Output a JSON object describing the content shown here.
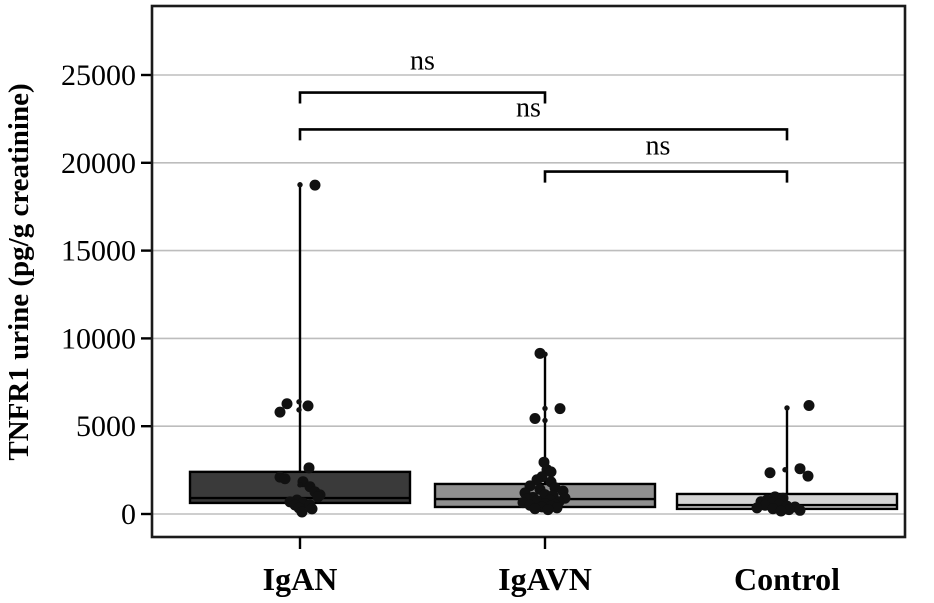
{
  "figure": {
    "background": "#ffffff",
    "border_color": "#1a1a1a",
    "grid_color": "#bdbdbd",
    "point_color": "#111111"
  },
  "chart_data": {
    "type": "box",
    "title": "",
    "xlabel": "",
    "ylabel": "TNFR1 urine (pg/g creatinine)",
    "categories": [
      "IgAN",
      "IgAVN",
      "Control"
    ],
    "x_ticks_shown": [
      "IgAN",
      "IgAVN"
    ],
    "ylim": [
      -1500,
      28500
    ],
    "yticks": [
      0,
      5000,
      10000,
      15000,
      20000,
      25000
    ],
    "grid": "horizontal",
    "legend": "none",
    "points_format": "[value_pg_per_g, x_jitter_px, size(lg|sm)]",
    "groups": [
      {
        "name": "IgAN",
        "fill": "#3a3a3a",
        "q1": 630,
        "median": 910,
        "q3": 2400,
        "whisker_low": 630,
        "whisker_high": 18750,
        "points": [
          [
            18750,
            0,
            "sm"
          ],
          [
            18730,
            15,
            "lg"
          ],
          [
            6390,
            -1,
            "sm"
          ],
          [
            6280,
            -13,
            "lg"
          ],
          [
            6160,
            8,
            "lg"
          ],
          [
            5930,
            -1,
            "sm"
          ],
          [
            5800,
            -20,
            "lg"
          ],
          [
            2630,
            9,
            "lg"
          ],
          [
            2100,
            -20,
            "lg"
          ],
          [
            2010,
            -15,
            "lg"
          ],
          [
            1840,
            3,
            "lg"
          ],
          [
            1660,
            0,
            "sm"
          ],
          [
            1550,
            10,
            "lg"
          ],
          [
            1260,
            15,
            "lg"
          ],
          [
            1090,
            20,
            "lg"
          ],
          [
            975,
            18,
            "lg"
          ],
          [
            800,
            -3,
            "lg"
          ],
          [
            690,
            -10,
            "lg"
          ],
          [
            630,
            3,
            "lg"
          ],
          [
            515,
            -5,
            "lg"
          ],
          [
            510,
            10,
            "lg"
          ],
          [
            340,
            -1,
            "lg"
          ],
          [
            290,
            12,
            "lg"
          ],
          [
            115,
            2,
            "lg"
          ]
        ]
      },
      {
        "name": "IgAVN",
        "fill": "#8f8f8f",
        "q1": 400,
        "median": 850,
        "q3": 1710,
        "whisker_low": 400,
        "whisker_high": 9050,
        "points": [
          [
            9150,
            -5,
            "lg"
          ],
          [
            9100,
            0,
            "sm"
          ],
          [
            6010,
            0,
            "sm"
          ],
          [
            6000,
            15,
            "lg"
          ],
          [
            5440,
            -10,
            "lg"
          ],
          [
            5330,
            0,
            "sm"
          ],
          [
            2950,
            -1,
            "lg"
          ],
          [
            2700,
            0,
            "sm"
          ],
          [
            2520,
            2,
            "lg"
          ],
          [
            2400,
            6,
            "lg"
          ],
          [
            2120,
            -3,
            "lg"
          ],
          [
            1950,
            -8,
            "lg"
          ],
          [
            1830,
            6,
            "lg"
          ],
          [
            1600,
            -15,
            "lg"
          ],
          [
            1500,
            10,
            "lg"
          ],
          [
            1400,
            -5,
            "lg"
          ],
          [
            1300,
            18,
            "lg"
          ],
          [
            1200,
            -20,
            "lg"
          ],
          [
            1100,
            0,
            "lg"
          ],
          [
            1050,
            8,
            "lg"
          ],
          [
            950,
            -12,
            "lg"
          ],
          [
            900,
            20,
            "lg"
          ],
          [
            850,
            -18,
            "lg"
          ],
          [
            800,
            5,
            "lg"
          ],
          [
            750,
            -8,
            "lg"
          ],
          [
            700,
            14,
            "lg"
          ],
          [
            650,
            -22,
            "lg"
          ],
          [
            600,
            0,
            "lg"
          ],
          [
            550,
            10,
            "lg"
          ],
          [
            500,
            -15,
            "lg"
          ],
          [
            450,
            6,
            "lg"
          ],
          [
            400,
            -3,
            "lg"
          ],
          [
            350,
            12,
            "lg"
          ],
          [
            300,
            -10,
            "lg"
          ],
          [
            250,
            3,
            "lg"
          ]
        ]
      },
      {
        "name": "Control",
        "fill": "#d4d4d4",
        "q1": 290,
        "median": 510,
        "q3": 1140,
        "whisker_low": 290,
        "whisker_high": 6040,
        "points": [
          [
            6180,
            22,
            "lg"
          ],
          [
            6040,
            0,
            "sm"
          ],
          [
            2580,
            13,
            "lg"
          ],
          [
            2520,
            -2,
            "sm"
          ],
          [
            2350,
            -17,
            "lg"
          ],
          [
            2160,
            21,
            "lg"
          ],
          [
            975,
            -12,
            "lg"
          ],
          [
            900,
            -4,
            "lg"
          ],
          [
            800,
            -20,
            "lg"
          ],
          [
            700,
            -26,
            "lg"
          ],
          [
            650,
            -15,
            "lg"
          ],
          [
            550,
            -8,
            "lg"
          ],
          [
            500,
            -22,
            "lg"
          ],
          [
            450,
            0,
            "lg"
          ],
          [
            400,
            8,
            "lg"
          ],
          [
            350,
            -30,
            "lg"
          ],
          [
            300,
            -14,
            "lg"
          ],
          [
            250,
            2,
            "lg"
          ],
          [
            210,
            13,
            "lg"
          ],
          [
            170,
            -6,
            "lg"
          ]
        ]
      }
    ],
    "comparisons": [
      {
        "from": "IgAN",
        "to": "IgAVN",
        "label": "ns",
        "level": 24000
      },
      {
        "from": "IgAN",
        "to": "Control",
        "label": "ns",
        "level": 21900
      },
      {
        "from": "IgAVN",
        "to": "Control",
        "label": "ns",
        "level": 19500
      }
    ]
  }
}
